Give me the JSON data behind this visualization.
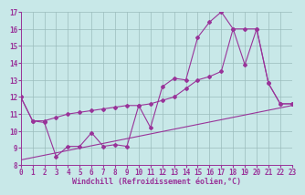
{
  "bg_color": "#c8e8e8",
  "line_color": "#993399",
  "grid_color": "#9bbcbc",
  "xlabel": "Windchill (Refroidissement éolien,°C)",
  "xlabel_fontsize": 6,
  "tick_fontsize": 5.5,
  "xlim": [
    0,
    23
  ],
  "ylim": [
    8,
    17
  ],
  "yticks": [
    8,
    9,
    10,
    11,
    12,
    13,
    14,
    15,
    16,
    17
  ],
  "xticks": [
    0,
    1,
    2,
    3,
    4,
    5,
    6,
    7,
    8,
    9,
    10,
    11,
    12,
    13,
    14,
    15,
    16,
    17,
    18,
    19,
    20,
    21,
    22,
    23
  ],
  "line1_x": [
    0,
    1,
    2,
    3,
    4,
    5,
    6,
    7,
    8,
    9,
    10,
    11,
    12,
    13,
    14,
    15,
    16,
    17,
    18,
    19,
    20,
    21,
    22,
    23
  ],
  "line1_y": [
    12.0,
    10.6,
    10.5,
    8.5,
    9.1,
    9.1,
    9.9,
    9.1,
    9.2,
    9.1,
    11.5,
    10.2,
    12.6,
    13.1,
    13.0,
    15.5,
    16.4,
    17.0,
    16.0,
    13.9,
    16.0,
    12.8,
    11.6,
    11.6
  ],
  "line2_x": [
    0,
    1,
    2,
    3,
    4,
    5,
    6,
    7,
    8,
    9,
    10,
    11,
    12,
    13,
    14,
    15,
    16,
    17,
    18,
    19,
    20,
    21,
    22,
    23
  ],
  "line2_y": [
    12.0,
    10.6,
    10.6,
    10.8,
    11.0,
    11.1,
    11.2,
    11.3,
    11.4,
    11.5,
    11.5,
    11.6,
    11.8,
    12.0,
    12.5,
    13.0,
    13.2,
    13.5,
    16.0,
    16.0,
    16.0,
    12.8,
    11.6,
    11.6
  ],
  "line3_x": [
    0,
    23
  ],
  "line3_y": [
    8.3,
    11.5
  ],
  "marker": "D",
  "markersize": 2.0,
  "linewidth": 0.8
}
